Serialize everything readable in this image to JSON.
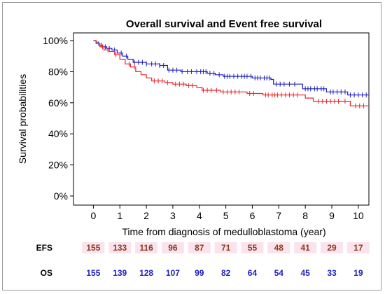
{
  "chart_data": {
    "type": "line",
    "title": "Overall survival and Event free survival",
    "xlabel": "Time from diagnosis of medulloblastoma (year)",
    "ylabel": "Survival probabilities",
    "xlim": [
      -0.75,
      10.4
    ],
    "ylim": [
      0,
      100
    ],
    "x_ticks": [
      "0",
      "1",
      "2",
      "3",
      "4",
      "5",
      "6",
      "7",
      "8",
      "9",
      "10"
    ],
    "y_ticks": [
      "0%",
      "20%",
      "40%",
      "60%",
      "80%",
      "100%"
    ],
    "grid": false,
    "colors": {
      "os": "#2020c0",
      "efs": "#e8262c",
      "efs_text": "#8b3a1a",
      "efs_band": "#fbe3ee"
    },
    "series": [
      {
        "key": "os",
        "color": "#2020c0",
        "points": [
          [
            0,
            100
          ],
          [
            0.1,
            99
          ],
          [
            0.2,
            97
          ],
          [
            0.35,
            96
          ],
          [
            0.5,
            95
          ],
          [
            0.7,
            94
          ],
          [
            0.9,
            92
          ],
          [
            1.1,
            90
          ],
          [
            1.3,
            88
          ],
          [
            1.5,
            86
          ],
          [
            2.0,
            85
          ],
          [
            2.5,
            84
          ],
          [
            2.8,
            81
          ],
          [
            3.3,
            80
          ],
          [
            3.8,
            80
          ],
          [
            4.3,
            79
          ],
          [
            4.6,
            78
          ],
          [
            4.9,
            77
          ],
          [
            5.5,
            77
          ],
          [
            6.0,
            76
          ],
          [
            6.7,
            75
          ],
          [
            6.8,
            72
          ],
          [
            7.5,
            72
          ],
          [
            7.9,
            69
          ],
          [
            8.5,
            69
          ],
          [
            8.8,
            67
          ],
          [
            9.2,
            67
          ],
          [
            9.6,
            65
          ],
          [
            10.4,
            65
          ]
        ],
        "censor": [
          0.3,
          0.45,
          0.6,
          0.8,
          1.05,
          1.25,
          1.55,
          1.7,
          1.85,
          2.0,
          2.2,
          2.35,
          2.5,
          2.65,
          2.85,
          3.0,
          3.15,
          3.35,
          3.55,
          3.7,
          3.9,
          4.05,
          4.15,
          4.25,
          4.4,
          4.55,
          4.75,
          4.95,
          5.05,
          5.15,
          5.3,
          5.45,
          5.6,
          5.7,
          5.8,
          5.95,
          6.1,
          6.2,
          6.3,
          6.45,
          6.55,
          6.65,
          6.9,
          7.05,
          7.2,
          7.4,
          7.6,
          8.0,
          8.1,
          8.2,
          8.35,
          8.45,
          8.6,
          8.7,
          8.95,
          9.05,
          9.2,
          9.35,
          9.5,
          9.7,
          9.85,
          10.0,
          10.15,
          10.3
        ]
      },
      {
        "key": "efs",
        "color": "#e8262c",
        "points": [
          [
            0,
            100
          ],
          [
            0.1,
            98
          ],
          [
            0.25,
            96
          ],
          [
            0.4,
            94
          ],
          [
            0.6,
            93
          ],
          [
            0.8,
            91
          ],
          [
            1.0,
            88
          ],
          [
            1.2,
            85
          ],
          [
            1.4,
            83
          ],
          [
            1.6,
            80
          ],
          [
            1.8,
            78
          ],
          [
            2.0,
            76
          ],
          [
            2.2,
            74
          ],
          [
            2.7,
            73
          ],
          [
            3.0,
            72
          ],
          [
            3.5,
            71
          ],
          [
            3.9,
            70
          ],
          [
            4.1,
            68
          ],
          [
            4.6,
            68
          ],
          [
            4.8,
            67
          ],
          [
            5.6,
            67
          ],
          [
            5.8,
            66
          ],
          [
            6.2,
            66
          ],
          [
            6.4,
            65
          ],
          [
            7.8,
            65
          ],
          [
            8.0,
            63
          ],
          [
            8.3,
            61
          ],
          [
            9.4,
            61
          ],
          [
            9.7,
            58
          ],
          [
            10.4,
            58
          ]
        ],
        "censor": [
          0.35,
          0.55,
          0.85,
          1.35,
          1.55,
          2.3,
          2.45,
          2.6,
          2.8,
          3.1,
          3.25,
          3.4,
          3.6,
          3.75,
          4.15,
          4.3,
          4.45,
          4.65,
          4.9,
          5.05,
          5.2,
          5.35,
          5.5,
          5.9,
          6.05,
          6.5,
          6.6,
          6.75,
          6.85,
          6.95,
          7.1,
          7.25,
          7.4,
          7.55,
          7.7,
          8.5,
          8.65,
          8.8,
          8.95,
          9.1,
          9.25,
          9.5,
          9.9,
          10.05,
          10.2
        ]
      }
    ],
    "risk_table": {
      "label_efs": "EFS",
      "label_os": "OS",
      "efs": [
        "155",
        "133",
        "116",
        "96",
        "87",
        "71",
        "55",
        "48",
        "41",
        "29",
        "17"
      ],
      "os": [
        "155",
        "139",
        "128",
        "107",
        "99",
        "82",
        "64",
        "54",
        "45",
        "33",
        "19"
      ]
    }
  }
}
